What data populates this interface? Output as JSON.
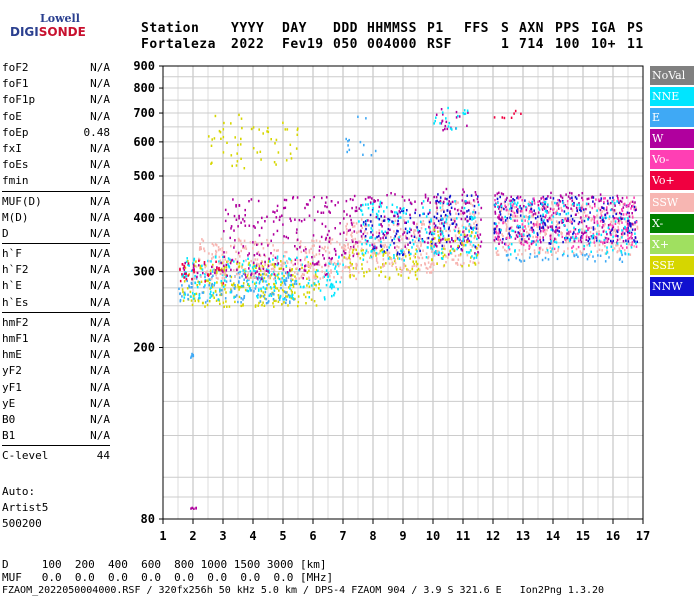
{
  "logo": {
    "line1": "Lowell",
    "line2a": "DIGI",
    "line2b": "SONDE"
  },
  "header": {
    "labels": [
      "Station",
      "YYYY",
      "DAY",
      "DDD",
      "HHMMSS",
      "P1",
      "FFS",
      "S",
      "AXN",
      "PPS",
      "IGA",
      "PS"
    ],
    "values": [
      "Fortaleza",
      "2022",
      "Fev19",
      "050",
      "004000",
      "RSF",
      "",
      "1",
      "714",
      "100",
      "10+",
      "11"
    ]
  },
  "params": {
    "group1": [
      [
        "foF2",
        "N/A"
      ],
      [
        "foF1",
        "N/A"
      ],
      [
        "foF1p",
        "N/A"
      ],
      [
        "foE",
        "N/A"
      ],
      [
        "foEp",
        "0.48"
      ],
      [
        "fxI",
        "N/A"
      ],
      [
        "foEs",
        "N/A"
      ],
      [
        "fmin",
        "N/A"
      ]
    ],
    "group2": [
      [
        "MUF(D)",
        "N/A"
      ],
      [
        "M(D)",
        "N/A"
      ],
      [
        "D",
        "N/A"
      ]
    ],
    "group3": [
      [
        "h`F",
        "N/A"
      ],
      [
        "h`F2",
        "N/A"
      ],
      [
        "h`E",
        "N/A"
      ],
      [
        "h`Es",
        "N/A"
      ]
    ],
    "group4": [
      [
        "hmF2",
        "N/A"
      ],
      [
        "hmF1",
        "N/A"
      ],
      [
        "hmE",
        "N/A"
      ],
      [
        "yF2",
        "N/A"
      ],
      [
        "yF1",
        "N/A"
      ],
      [
        "yE",
        "N/A"
      ],
      [
        "B0",
        "N/A"
      ],
      [
        "B1",
        "N/A"
      ]
    ],
    "group5": [
      [
        "C-level",
        "44"
      ]
    ]
  },
  "auto": {
    "line1": "Auto:",
    "line2": "Artist5",
    "line3": "500200"
  },
  "legend": [
    {
      "label": "NoVal",
      "color": "#808080"
    },
    {
      "label": "NNE",
      "color": "#00e5ff"
    },
    {
      "label": "E",
      "color": "#3fa9f5"
    },
    {
      "label": "W",
      "color": "#b0009e"
    },
    {
      "label": "Vo-",
      "color": "#ff3fb4"
    },
    {
      "label": "Vo+",
      "color": "#f00040"
    },
    {
      "label": "SSW",
      "color": "#f7b6b2"
    },
    {
      "label": "X-",
      "color": "#008000"
    },
    {
      "label": "X+",
      "color": "#a0e060"
    },
    {
      "label": "SSE",
      "color": "#d6d600"
    },
    {
      "label": "NNW",
      "color": "#1010d0"
    }
  ],
  "bottom": {
    "line1": "D     100  200  400  600  800 1000 1500 3000 [km]",
    "line2": "MUF   0.0  0.0  0.0  0.0  0.0  0.0  0.0  0.0 [MHz]",
    "line3": "FZAOM_2022050004000.RSF / 320fx256h 50 kHz 5.0 km / DPS-4 FZAOM 904 / 3.9 S 321.6 E   Ion2Png 1.3.20"
  },
  "chart_data": {
    "type": "scatter",
    "title": "",
    "xlabel": "",
    "ylabel": "",
    "xlim": [
      1,
      17
    ],
    "ylim": [
      80,
      900
    ],
    "yscale": "log",
    "xticks": [
      1,
      2,
      3,
      4,
      5,
      6,
      7,
      8,
      9,
      10,
      11,
      12,
      13,
      14,
      15,
      16,
      17
    ],
    "yticks": [
      80,
      200,
      300,
      400,
      500,
      600,
      700,
      800,
      900
    ],
    "grid": true,
    "legend_position": "right",
    "clusters": [
      {
        "source": "SSE",
        "x": [
          1.6,
          6.2
        ],
        "y": [
          250,
          320
        ],
        "density": 0.9
      },
      {
        "source": "E",
        "x": [
          1.5,
          5.5
        ],
        "y": [
          255,
          300
        ],
        "density": 0.8
      },
      {
        "source": "NNE",
        "x": [
          1.6,
          7.0
        ],
        "y": [
          260,
          330
        ],
        "density": 0.6
      },
      {
        "source": "SSW",
        "x": [
          2.0,
          7.5
        ],
        "y": [
          290,
          360
        ],
        "density": 0.9
      },
      {
        "source": "W",
        "x": [
          1.6,
          6.5
        ],
        "y": [
          290,
          320
        ],
        "density": 0.6
      },
      {
        "source": "Vo+",
        "x": [
          1.5,
          3.0
        ],
        "y": [
          280,
          320
        ],
        "density": 0.5
      },
      {
        "source": "W",
        "x": [
          3.0,
          7.5
        ],
        "y": [
          320,
          450
        ],
        "density": 0.4
      },
      {
        "source": "SSE",
        "x": [
          7.0,
          9.5
        ],
        "y": [
          290,
          340
        ],
        "density": 0.8
      },
      {
        "source": "SSW",
        "x": [
          7.0,
          10.0
        ],
        "y": [
          300,
          400
        ],
        "density": 0.9
      },
      {
        "source": "NNW",
        "x": [
          7.5,
          10.0
        ],
        "y": [
          330,
          420
        ],
        "density": 0.5
      },
      {
        "source": "NNE",
        "x": [
          7.5,
          10.0
        ],
        "y": [
          320,
          440
        ],
        "density": 0.5
      },
      {
        "source": "W",
        "x": [
          7.0,
          10.0
        ],
        "y": [
          340,
          460
        ],
        "density": 0.4
      },
      {
        "source": "SSW",
        "x": [
          9.9,
          11.5
        ],
        "y": [
          310,
          440
        ],
        "density": 0.9
      },
      {
        "source": "NNW",
        "x": [
          10.0,
          11.5
        ],
        "y": [
          340,
          460
        ],
        "density": 0.6
      },
      {
        "source": "W",
        "x": [
          10.0,
          11.6
        ],
        "y": [
          330,
          470
        ],
        "density": 0.6
      },
      {
        "source": "SSE",
        "x": [
          9.9,
          11.5
        ],
        "y": [
          310,
          380
        ],
        "density": 0.6
      },
      {
        "source": "NNE",
        "x": [
          9.9,
          11.5
        ],
        "y": [
          320,
          440
        ],
        "density": 0.5
      },
      {
        "source": "SSW",
        "x": [
          12.0,
          16.8
        ],
        "y": [
          330,
          440
        ],
        "density": 0.9
      },
      {
        "source": "W",
        "x": [
          12.0,
          16.8
        ],
        "y": [
          350,
          460
        ],
        "density": 0.7
      },
      {
        "source": "NNW",
        "x": [
          12.0,
          16.8
        ],
        "y": [
          350,
          450
        ],
        "density": 0.6
      },
      {
        "source": "Vo-",
        "x": [
          12.0,
          16.8
        ],
        "y": [
          340,
          450
        ],
        "density": 0.5
      },
      {
        "source": "NNE",
        "x": [
          12.0,
          16.8
        ],
        "y": [
          330,
          440
        ],
        "density": 0.4
      },
      {
        "source": "E",
        "x": [
          12.0,
          16.8
        ],
        "y": [
          318,
          332
        ],
        "density": 0.7
      },
      {
        "source": "SSE",
        "x": [
          2.5,
          5.5
        ],
        "y": [
          520,
          700
        ],
        "density": 0.25
      },
      {
        "source": "E",
        "x": [
          7.0,
          8.5
        ],
        "y": [
          560,
          700
        ],
        "density": 0.15
      },
      {
        "source": "W",
        "x": [
          10.0,
          11.2
        ],
        "y": [
          640,
          720
        ],
        "density": 0.5
      },
      {
        "source": "NNE",
        "x": [
          10.0,
          11.2
        ],
        "y": [
          640,
          740
        ],
        "density": 0.4
      },
      {
        "source": "Vo+",
        "x": [
          12.0,
          13.0
        ],
        "y": [
          680,
          720
        ],
        "density": 0.5
      },
      {
        "source": "W",
        "x": [
          1.9,
          2.1
        ],
        "y": [
          85,
          86
        ],
        "density": 1.0
      },
      {
        "source": "E",
        "x": [
          1.9,
          2.0
        ],
        "y": [
          190,
          195
        ],
        "density": 1.0
      }
    ]
  }
}
